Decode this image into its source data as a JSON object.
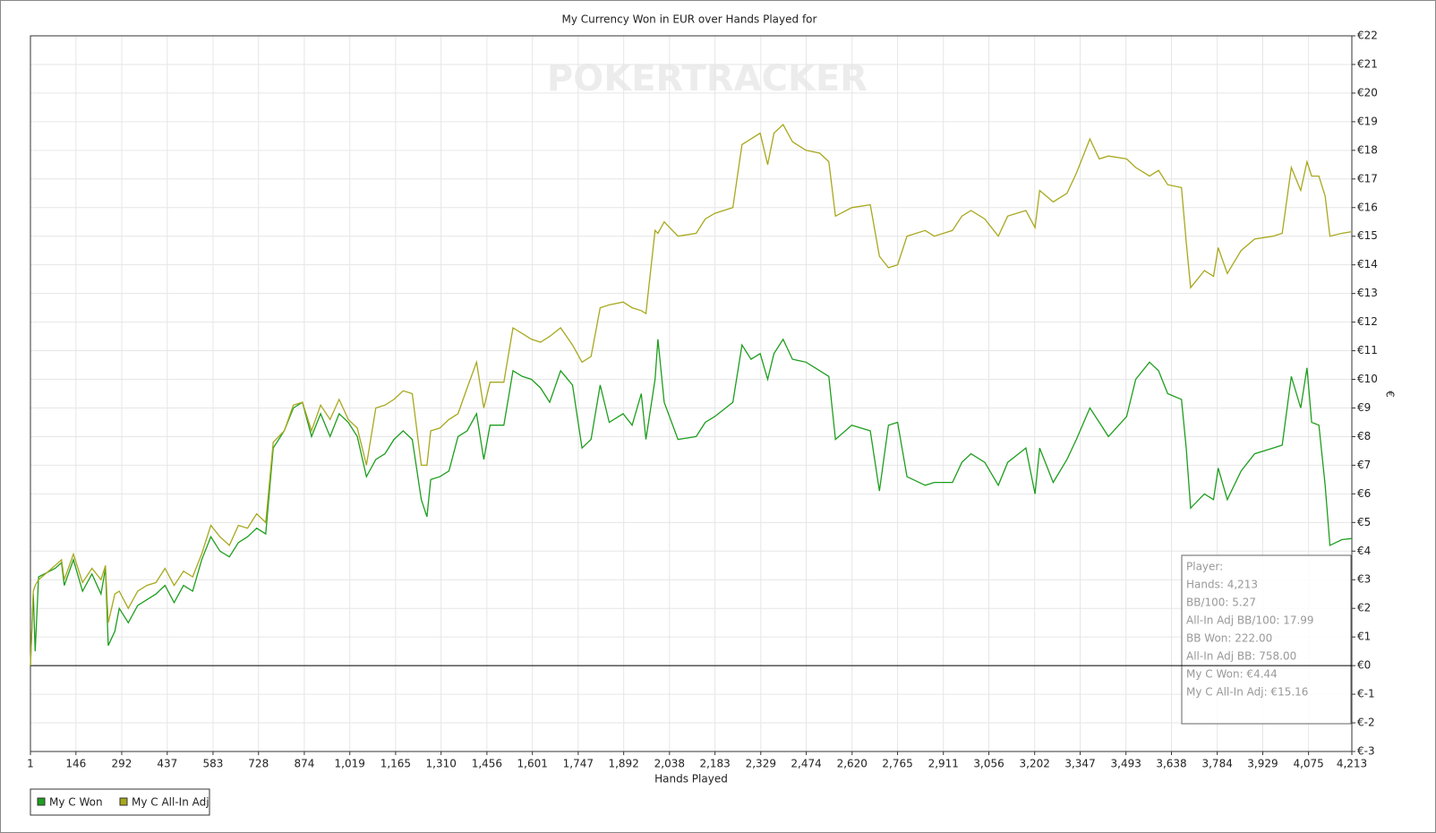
{
  "chart_data": {
    "type": "line",
    "title": "My Currency Won in EUR over Hands Played for",
    "watermark": "POKERTRACKER",
    "xlabel": "Hands Played",
    "ylabel": "€",
    "grid": true,
    "legend": "bottom-left",
    "xlim": [
      1,
      4213
    ],
    "ylim": [
      -3,
      22
    ],
    "xticks": [
      1,
      146,
      292,
      437,
      583,
      728,
      874,
      {
        "value": 1019,
        "label": "1,019"
      },
      {
        "value": 1165,
        "label": "1,165"
      },
      {
        "value": 1310,
        "label": "1,310"
      },
      {
        "value": 1456,
        "label": "1,456"
      },
      {
        "value": 1601,
        "label": "1,601"
      },
      {
        "value": 1747,
        "label": "1,747"
      },
      {
        "value": 1892,
        "label": "1,892"
      },
      {
        "value": 2038,
        "label": "2,038"
      },
      {
        "value": 2183,
        "label": "2,183"
      },
      {
        "value": 2329,
        "label": "2,329"
      },
      {
        "value": 2474,
        "label": "2,474"
      },
      {
        "value": 2620,
        "label": "2,620"
      },
      {
        "value": 2765,
        "label": "2,765"
      },
      {
        "value": 2911,
        "label": "2,911"
      },
      {
        "value": 3056,
        "label": "3,056"
      },
      {
        "value": 3202,
        "label": "3,202"
      },
      {
        "value": 3347,
        "label": "3,347"
      },
      {
        "value": 3493,
        "label": "3,493"
      },
      {
        "value": 3638,
        "label": "3,638"
      },
      {
        "value": 3784,
        "label": "3,784"
      },
      {
        "value": 3929,
        "label": "3,929"
      },
      {
        "value": 4075,
        "label": "4,075"
      },
      {
        "value": 4213,
        "label": "4,213"
      }
    ],
    "yticks": [
      {
        "value": -3,
        "label": "€-3"
      },
      {
        "value": -2,
        "label": "€-2"
      },
      {
        "value": -1,
        "label": "€-1"
      },
      {
        "value": 0,
        "label": "€0"
      },
      {
        "value": 1,
        "label": "€1"
      },
      {
        "value": 2,
        "label": "€2"
      },
      {
        "value": 3,
        "label": "€3"
      },
      {
        "value": 4,
        "label": "€4"
      },
      {
        "value": 5,
        "label": "€5"
      },
      {
        "value": 6,
        "label": "€6"
      },
      {
        "value": 7,
        "label": "€7"
      },
      {
        "value": 8,
        "label": "€8"
      },
      {
        "value": 9,
        "label": "€9"
      },
      {
        "value": 10,
        "label": "€10"
      },
      {
        "value": 11,
        "label": "€11"
      },
      {
        "value": 12,
        "label": "€12"
      },
      {
        "value": 13,
        "label": "€13"
      },
      {
        "value": 14,
        "label": "€14"
      },
      {
        "value": 15,
        "label": "€15"
      },
      {
        "value": 16,
        "label": "€16"
      },
      {
        "value": 17,
        "label": "€17"
      },
      {
        "value": 18,
        "label": "€18"
      },
      {
        "value": 19,
        "label": "€19"
      },
      {
        "value": 20,
        "label": "€20"
      },
      {
        "value": 21,
        "label": "€21"
      },
      {
        "value": 22,
        "label": "€22"
      }
    ],
    "x": [
      1,
      10,
      16,
      27,
      80,
      100,
      109,
      138,
      167,
      197,
      226,
      240,
      249,
      270,
      284,
      313,
      343,
      372,
      401,
      430,
      459,
      489,
      518,
      547,
      576,
      605,
      635,
      664,
      693,
      722,
      751,
      775,
      810,
      839,
      868,
      897,
      926,
      956,
      985,
      1014,
      1043,
      1072,
      1102,
      1131,
      1160,
      1189,
      1218,
      1247,
      1265,
      1277,
      1306,
      1335,
      1364,
      1393,
      1423,
      1446,
      1466,
      1510,
      1539,
      1569,
      1598,
      1627,
      1656,
      1691,
      1729,
      1759,
      1788,
      1817,
      1846,
      1890,
      1919,
      1948,
      1963,
      1992,
      2001,
      2021,
      2065,
      2123,
      2152,
      2182,
      2240,
      2269,
      2298,
      2327,
      2351,
      2371,
      2400,
      2430,
      2473,
      2517,
      2546,
      2567,
      2619,
      2678,
      2707,
      2736,
      2765,
      2795,
      2853,
      2882,
      2940,
      2970,
      2999,
      3043,
      3086,
      3116,
      3174,
      3203,
      3218,
      3261,
      3305,
      3335,
      3378,
      3408,
      3437,
      3495,
      3524,
      3568,
      3597,
      3626,
      3670,
      3685,
      3699,
      3743,
      3772,
      3787,
      3816,
      3860,
      3903,
      3962,
      3991,
      4020,
      4050,
      4070,
      4085,
      4108,
      4128,
      4143,
      4181,
      4213
    ],
    "series": [
      {
        "name": "My C Won",
        "color": "#1e9e1e",
        "values": [
          0,
          2.5,
          0.5,
          3.1,
          3.4,
          3.6,
          2.8,
          3.7,
          2.6,
          3.2,
          2.5,
          3.4,
          0.7,
          1.2,
          2.0,
          1.5,
          2.1,
          2.3,
          2.5,
          2.8,
          2.2,
          2.8,
          2.6,
          3.7,
          4.5,
          4.0,
          3.8,
          4.3,
          4.5,
          4.8,
          4.6,
          7.6,
          8.2,
          9.0,
          9.2,
          8.0,
          8.8,
          8.0,
          8.8,
          8.5,
          8.0,
          6.6,
          7.2,
          7.4,
          7.9,
          8.2,
          7.9,
          5.8,
          5.2,
          6.5,
          6.6,
          6.8,
          8.0,
          8.2,
          8.8,
          7.2,
          8.4,
          8.4,
          10.3,
          10.1,
          10.0,
          9.7,
          9.2,
          10.3,
          9.8,
          7.6,
          7.9,
          9.8,
          8.5,
          8.8,
          8.4,
          9.5,
          7.9,
          10.0,
          11.4,
          9.2,
          7.9,
          8.0,
          8.5,
          8.7,
          9.2,
          11.2,
          10.7,
          10.9,
          10.0,
          10.9,
          11.4,
          10.7,
          10.6,
          10.3,
          10.1,
          7.9,
          8.4,
          8.2,
          6.1,
          8.4,
          8.5,
          6.6,
          6.3,
          6.4,
          6.4,
          7.1,
          7.4,
          7.1,
          6.3,
          7.1,
          7.6,
          6.0,
          7.6,
          6.4,
          7.2,
          7.9,
          9.0,
          8.5,
          8.0,
          8.7,
          10.0,
          10.6,
          10.3,
          9.5,
          9.3,
          7.6,
          5.5,
          6.0,
          5.8,
          6.9,
          5.8,
          6.8,
          7.4,
          7.6,
          7.7,
          10.1,
          9.0,
          10.4,
          8.5,
          8.4,
          6.3,
          4.2,
          4.4,
          4.44
        ]
      },
      {
        "name": "My C All-In Adj",
        "color": "#a8a81e",
        "values": [
          0,
          2.6,
          2.8,
          3.0,
          3.5,
          3.7,
          3.0,
          3.9,
          2.9,
          3.4,
          3.0,
          3.5,
          1.5,
          2.5,
          2.6,
          2.0,
          2.6,
          2.8,
          2.9,
          3.4,
          2.8,
          3.3,
          3.1,
          3.9,
          4.9,
          4.5,
          4.2,
          4.9,
          4.8,
          5.3,
          5.0,
          7.8,
          8.2,
          9.1,
          9.2,
          8.2,
          9.1,
          8.6,
          9.3,
          8.6,
          8.3,
          7.0,
          9.0,
          9.1,
          9.3,
          9.6,
          9.5,
          7.0,
          7.0,
          8.2,
          8.3,
          8.6,
          8.8,
          9.7,
          10.6,
          9.0,
          9.9,
          9.9,
          11.8,
          11.6,
          11.4,
          11.3,
          11.5,
          11.8,
          11.2,
          10.6,
          10.8,
          12.5,
          12.6,
          12.7,
          12.5,
          12.4,
          12.3,
          15.2,
          15.1,
          15.5,
          15.0,
          15.1,
          15.6,
          15.8,
          16.0,
          18.2,
          18.4,
          18.6,
          17.5,
          18.6,
          18.9,
          18.3,
          18.0,
          17.9,
          17.6,
          15.7,
          16.0,
          16.1,
          14.3,
          13.9,
          14.0,
          15.0,
          15.2,
          15.0,
          15.2,
          15.7,
          15.9,
          15.6,
          15.0,
          15.7,
          15.9,
          15.3,
          16.6,
          16.2,
          16.5,
          17.2,
          18.4,
          17.7,
          17.8,
          17.7,
          17.4,
          17.1,
          17.3,
          16.8,
          16.7,
          14.8,
          13.2,
          13.8,
          13.6,
          14.6,
          13.7,
          14.5,
          14.9,
          15.0,
          15.1,
          17.4,
          16.6,
          17.6,
          17.1,
          17.1,
          16.4,
          15.0,
          15.1,
          15.16
        ]
      }
    ],
    "tooltip": [
      "Player:",
      "Hands: 4,213",
      "BB/100: 5.27",
      "All-In Adj BB/100: 17.99",
      "BB Won: 222.00",
      "All-In Adj BB: 758.00",
      "My C Won: €4.44",
      "My C All-In Adj: €15.16"
    ]
  }
}
